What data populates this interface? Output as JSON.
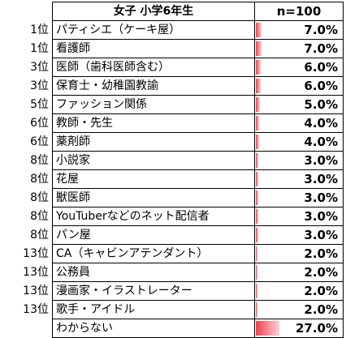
{
  "header": {
    "title": "女子  小学6年生",
    "n_label": "n=100"
  },
  "chart_data": {
    "type": "table",
    "title": "女子  小学6年生",
    "sample": "n=100",
    "rows": [
      {
        "rank": "1位",
        "job": "パティシエ（ケーキ屋）",
        "value": 7.0,
        "label": "7.0%"
      },
      {
        "rank": "1位",
        "job": "看護師",
        "value": 7.0,
        "label": "7.0%"
      },
      {
        "rank": "3位",
        "job": "医師（歯科医師含む）",
        "value": 6.0,
        "label": "6.0%"
      },
      {
        "rank": "3位",
        "job": "保育士・幼稚園教諭",
        "value": 6.0,
        "label": "6.0%"
      },
      {
        "rank": "5位",
        "job": "ファッション関係",
        "value": 5.0,
        "label": "5.0%"
      },
      {
        "rank": "6位",
        "job": "教師・先生",
        "value": 4.0,
        "label": "4.0%"
      },
      {
        "rank": "6位",
        "job": "薬剤師",
        "value": 4.0,
        "label": "4.0%"
      },
      {
        "rank": "8位",
        "job": "小説家",
        "value": 3.0,
        "label": "3.0%"
      },
      {
        "rank": "8位",
        "job": "花屋",
        "value": 3.0,
        "label": "3.0%"
      },
      {
        "rank": "8位",
        "job": "獣医師",
        "value": 3.0,
        "label": "3.0%"
      },
      {
        "rank": "8位",
        "job": "YouTuberなどのネット配信者",
        "value": 3.0,
        "label": "3.0%"
      },
      {
        "rank": "8位",
        "job": "パン屋",
        "value": 3.0,
        "label": "3.0%"
      },
      {
        "rank": "13位",
        "job": "CA（キャビンアテンダント）",
        "value": 2.0,
        "label": "2.0%"
      },
      {
        "rank": "13位",
        "job": "公務員",
        "value": 2.0,
        "label": "2.0%"
      },
      {
        "rank": "13位",
        "job": "漫画家・イラストレーター",
        "value": 2.0,
        "label": "2.0%"
      },
      {
        "rank": "13位",
        "job": "歌手・アイドル",
        "value": 2.0,
        "label": "2.0%"
      },
      {
        "rank": "",
        "job": "わからない",
        "value": 27.0,
        "label": "27.0%"
      }
    ],
    "bar_max": 100,
    "bar_color": "#f4404a"
  }
}
